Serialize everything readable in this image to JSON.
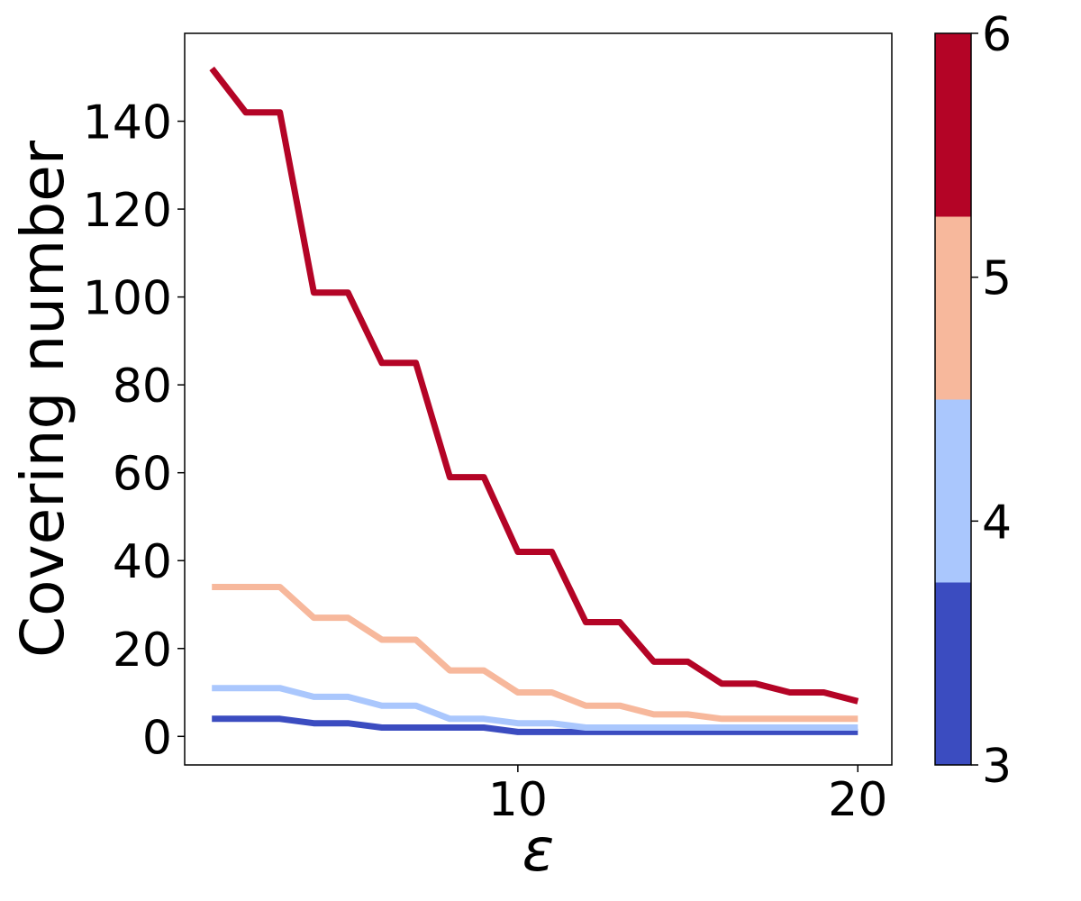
{
  "chart_data": {
    "type": "line",
    "title": "",
    "xlabel": "ε",
    "ylabel": "Covering number",
    "xlim": [
      0.2,
      21.0
    ],
    "ylim": [
      -6.5,
      160
    ],
    "xticks": [
      10,
      20
    ],
    "yticks": [
      0,
      20,
      40,
      60,
      80,
      100,
      120,
      140
    ],
    "grid": false,
    "legend": "none",
    "x": [
      1,
      2,
      3,
      4,
      5,
      6,
      7,
      8,
      9,
      10,
      11,
      12,
      13,
      14,
      15,
      16,
      17,
      18,
      19,
      20
    ],
    "series": [
      {
        "color": "#3b4cc0",
        "values": [
          4,
          4,
          4,
          3,
          3,
          2,
          2,
          2,
          2,
          1,
          1,
          1,
          1,
          1,
          1,
          1,
          1,
          1,
          1,
          1
        ]
      },
      {
        "color": "#aac7fd",
        "values": [
          11,
          11,
          11,
          9,
          9,
          7,
          7,
          4,
          4,
          3,
          3,
          2,
          2,
          2,
          2,
          2,
          2,
          2,
          2,
          2
        ]
      },
      {
        "color": "#f7b89c",
        "values": [
          34,
          34,
          34,
          27,
          27,
          22,
          22,
          15,
          15,
          10,
          10,
          7,
          7,
          5,
          5,
          4,
          4,
          4,
          4,
          4
        ]
      },
      {
        "color": "#b40426",
        "values": [
          152,
          142,
          142,
          101,
          101,
          85,
          85,
          59,
          59,
          42,
          42,
          26,
          26,
          17,
          17,
          12,
          12,
          10,
          10,
          8
        ]
      }
    ],
    "colorbar": {
      "ticks": [
        "3",
        "4",
        "5",
        "6"
      ],
      "segments": [
        {
          "value": 3,
          "color": "#3b4cc0"
        },
        {
          "value": 4,
          "color": "#aac7fd"
        },
        {
          "value": 5,
          "color": "#f7b89c"
        },
        {
          "value": 6,
          "color": "#b40426"
        }
      ]
    }
  }
}
